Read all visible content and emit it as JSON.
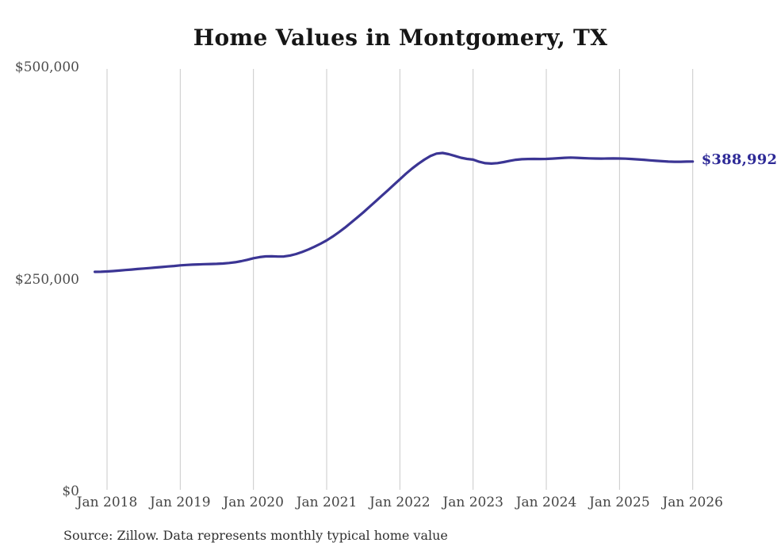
{
  "title": "Home Values in Montgomery, TX",
  "source_note": "Source: Zillow. Data represents monthly typical home value",
  "end_label": "$388,992",
  "colors": {
    "line": "#3b3594",
    "end_label": "#2e2a97",
    "grid": "#c9c9c9",
    "axis_text": "#4d4d4d",
    "title_text": "#161616",
    "background": "#ffffff"
  },
  "y_axis": {
    "ticks": [
      {
        "label": "$0",
        "value": 0
      },
      {
        "label": "$250,000",
        "value": 250000
      },
      {
        "label": "$500,000",
        "value": 500000
      }
    ]
  },
  "chart_data": {
    "type": "line",
    "title": "Home Values in Montgomery, TX",
    "name": "Monthly typical home value",
    "unit": "USD",
    "interval": "monthly",
    "x_start": "2017-11",
    "x_end": "2026-01",
    "start_month_offset": -2,
    "x_tick_labels": [
      "Jan 2018",
      "Jan 2019",
      "Jan 2020",
      "Jan 2021",
      "Jan 2022",
      "Jan 2023",
      "Jan 2024",
      "Jan 2025",
      "Jan 2026"
    ],
    "y_tick_labels": [
      "$0",
      "$250,000",
      "$500,000"
    ],
    "ylim": [
      0,
      500000
    ],
    "grid": "vertical",
    "legend": "none",
    "final_value": 388992,
    "final_value_label": "$388,992",
    "values": [
      258900,
      259000,
      259300,
      259800,
      260400,
      261000,
      261600,
      262200,
      262800,
      263400,
      264000,
      264600,
      265200,
      265800,
      266500,
      267000,
      267400,
      267700,
      267900,
      268100,
      268300,
      268700,
      269300,
      270200,
      271500,
      273100,
      275000,
      276300,
      277100,
      277200,
      276900,
      277000,
      278100,
      279900,
      282300,
      285200,
      288500,
      292100,
      296000,
      300600,
      305600,
      311000,
      316900,
      322900,
      329000,
      335400,
      341900,
      348400,
      354900,
      361500,
      368000,
      374600,
      380700,
      386200,
      391100,
      395400,
      398300,
      399100,
      397700,
      395600,
      393500,
      392100,
      391200,
      388700,
      387000,
      386500,
      387100,
      388300,
      389800,
      391000,
      391700,
      392000,
      392100,
      392000,
      392100,
      392400,
      392900,
      393400,
      393600,
      393400,
      393000,
      392700,
      392500,
      392400,
      392500,
      392600,
      392500,
      392300,
      392000,
      391500,
      391000,
      390400,
      389800,
      389300,
      388900,
      388700,
      388700,
      388850,
      388992
    ]
  }
}
